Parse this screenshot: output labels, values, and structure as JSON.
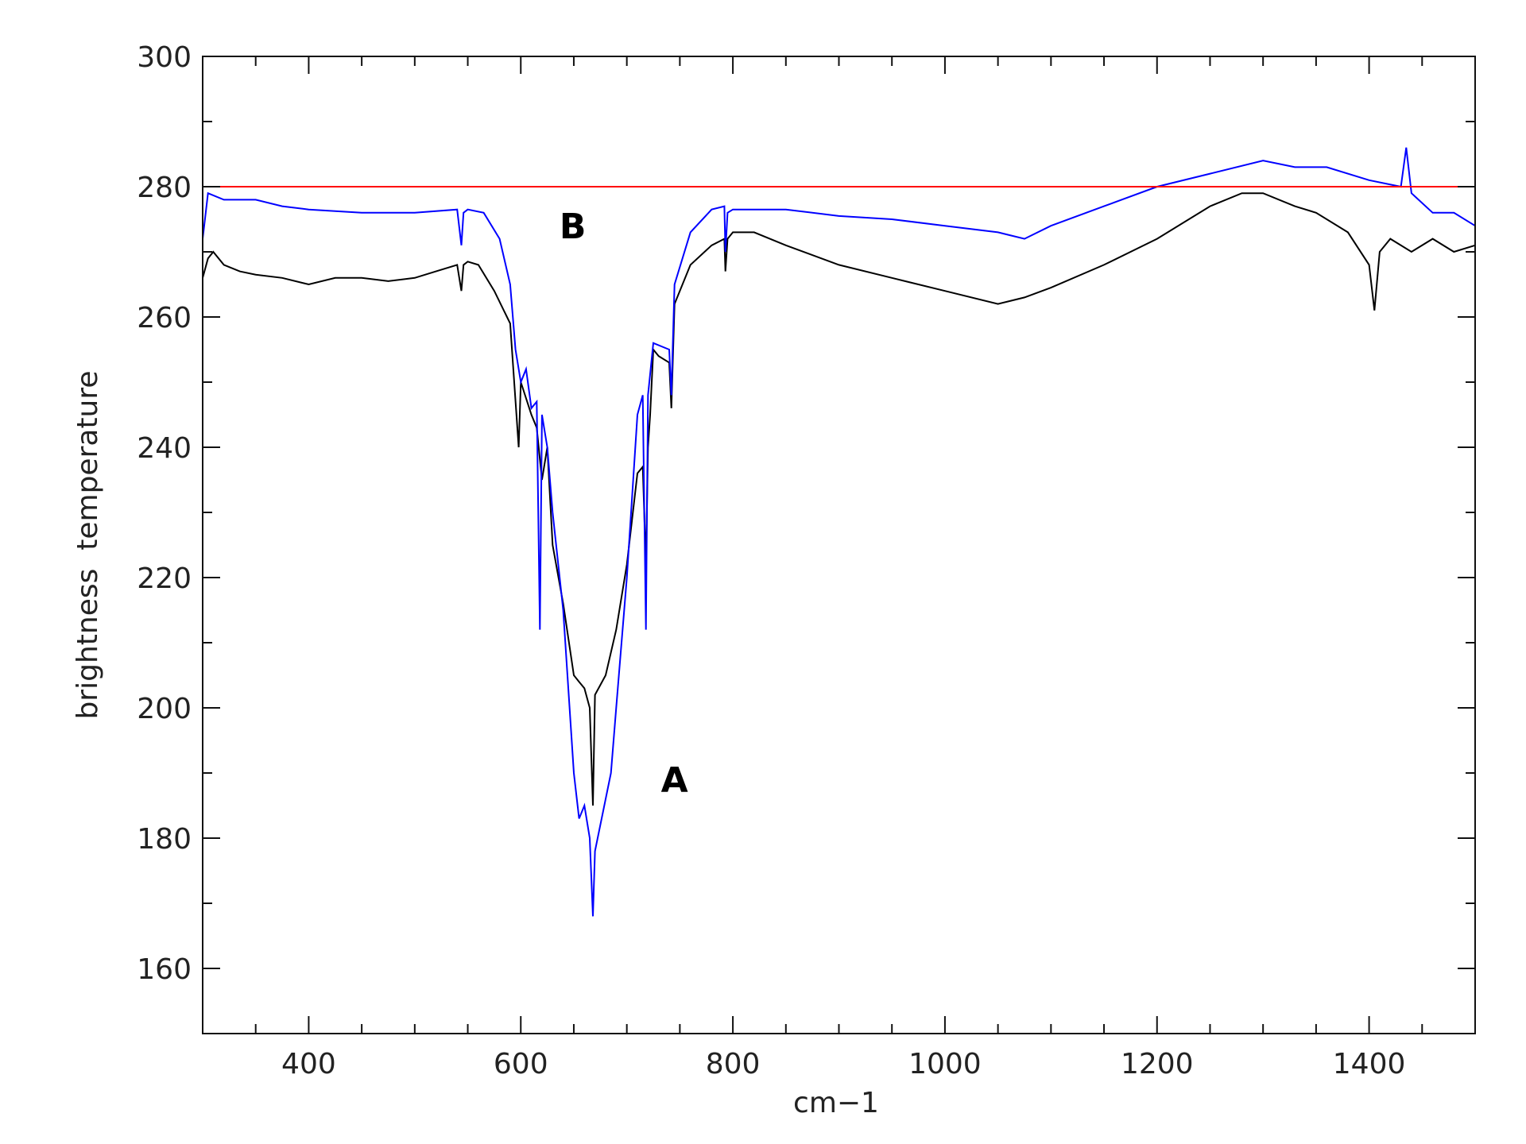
{
  "chart_data": {
    "type": "line",
    "title": "",
    "xlabel": "cm−1",
    "ylabel": "brightness  temperature",
    "xlim": [
      300,
      1500
    ],
    "ylim": [
      150,
      300
    ],
    "xticks": [
      400,
      600,
      800,
      1000,
      1200,
      1400
    ],
    "yticks": [
      160,
      180,
      200,
      220,
      240,
      260,
      280,
      300
    ],
    "grid": false,
    "series": [
      {
        "color": "#000000",
        "x": [
          300,
          305,
          310,
          320,
          335,
          350,
          375,
          400,
          425,
          450,
          475,
          500,
          520,
          540,
          544,
          546,
          550,
          560,
          575,
          590,
          598,
          600,
          610,
          615,
          620,
          625,
          630,
          640,
          650,
          655,
          660,
          665,
          668,
          670,
          680,
          690,
          700,
          710,
          715,
          718,
          720,
          722,
          725,
          730,
          740,
          742,
          745,
          760,
          780,
          792,
          793,
          795,
          800,
          820,
          850,
          900,
          950,
          1000,
          1050,
          1075,
          1100,
          1150,
          1200,
          1250,
          1280,
          1300,
          1330,
          1350,
          1380,
          1400,
          1405,
          1410,
          1420,
          1440,
          1460,
          1480,
          1500
        ],
        "y": [
          266,
          269,
          270,
          268,
          267,
          266.5,
          266,
          265,
          266,
          266,
          265.5,
          266,
          267,
          268,
          264,
          268,
          268.5,
          268,
          264,
          259,
          240,
          250,
          245,
          243,
          235,
          240,
          225,
          216,
          205,
          204,
          203,
          200,
          185,
          202,
          205,
          212,
          222,
          236,
          237,
          222,
          240,
          245,
          255,
          254,
          253,
          246,
          262,
          268,
          271,
          272,
          267,
          272,
          273,
          273,
          271,
          268,
          266,
          264,
          262,
          263,
          264.5,
          268,
          272,
          277,
          279,
          279,
          277,
          276,
          273,
          268,
          261,
          270,
          272,
          270,
          272,
          270,
          271
        ]
      },
      {
        "color": "#0000ff",
        "x": [
          300,
          305,
          320,
          350,
          375,
          400,
          450,
          500,
          540,
          544,
          546,
          550,
          565,
          580,
          590,
          595,
          600,
          605,
          610,
          615,
          618,
          620,
          625,
          630,
          640,
          650,
          655,
          660,
          665,
          668,
          670,
          675,
          685,
          690,
          700,
          710,
          715,
          718,
          720,
          725,
          740,
          742,
          745,
          760,
          780,
          792,
          793,
          795,
          800,
          850,
          900,
          950,
          1000,
          1050,
          1075,
          1100,
          1150,
          1200,
          1250,
          1300,
          1330,
          1360,
          1400,
          1430,
          1435,
          1440,
          1460,
          1480,
          1500
        ],
        "y": [
          272,
          279,
          278,
          278,
          277,
          276.5,
          276,
          276,
          276.5,
          271,
          276,
          276.5,
          276,
          272,
          265,
          255,
          250,
          252,
          246,
          247,
          212,
          245,
          240,
          230,
          215,
          190,
          183,
          185,
          180,
          168,
          178,
          182,
          190,
          200,
          220,
          245,
          248,
          212,
          248,
          256,
          255,
          248,
          265,
          273,
          276.5,
          277,
          270,
          276,
          276.5,
          276.5,
          275.5,
          275,
          274,
          273,
          272,
          274,
          277,
          280,
          282,
          284,
          283,
          283,
          281,
          280,
          286,
          279,
          276,
          276,
          274
        ]
      },
      {
        "color": "#ff0000",
        "x": [
          300,
          1500
        ],
        "y": [
          280,
          280
        ]
      }
    ],
    "annotations": [
      {
        "text": "A",
        "x": 745,
        "y": 189
      },
      {
        "text": "B",
        "x": 649,
        "y": 274
      }
    ]
  }
}
